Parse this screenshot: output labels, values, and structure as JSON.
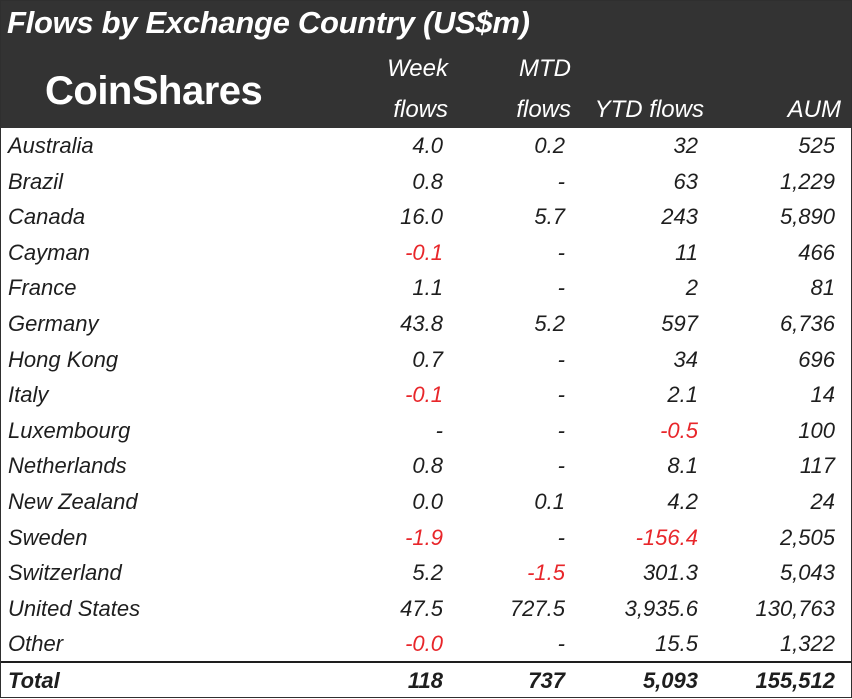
{
  "header": {
    "title": "Flows by Exchange Country (US$m)",
    "logo": "CoinShares",
    "columns": [
      {
        "line1": "Week",
        "line2": "flows"
      },
      {
        "line1": "MTD",
        "line2": "flows"
      },
      {
        "line1": "",
        "line2": "YTD flows"
      },
      {
        "line1": "",
        "line2": "AUM"
      }
    ]
  },
  "rows": [
    {
      "country": "Australia",
      "week": "4.0",
      "mtd": "0.2",
      "ytd": "32",
      "aum": "525"
    },
    {
      "country": "Brazil",
      "week": "0.8",
      "mtd": "-",
      "ytd": "63",
      "aum": "1,229"
    },
    {
      "country": "Canada",
      "week": "16.0",
      "mtd": "5.7",
      "ytd": "243",
      "aum": "5,890"
    },
    {
      "country": "Cayman",
      "week": "-0.1",
      "mtd": "-",
      "ytd": "11",
      "aum": "466"
    },
    {
      "country": "France",
      "week": "1.1",
      "mtd": "-",
      "ytd": "2",
      "aum": "81"
    },
    {
      "country": "Germany",
      "week": "43.8",
      "mtd": "5.2",
      "ytd": "597",
      "aum": "6,736"
    },
    {
      "country": "Hong Kong",
      "week": "0.7",
      "mtd": "-",
      "ytd": "34",
      "aum": "696"
    },
    {
      "country": "Italy",
      "week": "-0.1",
      "mtd": "-",
      "ytd": "2.1",
      "aum": "14"
    },
    {
      "country": "Luxembourg",
      "week": "-",
      "mtd": "-",
      "ytd": "-0.5",
      "aum": "100"
    },
    {
      "country": "Netherlands",
      "week": "0.8",
      "mtd": "-",
      "ytd": "8.1",
      "aum": "117"
    },
    {
      "country": "New Zealand",
      "week": "0.0",
      "mtd": "0.1",
      "ytd": "4.2",
      "aum": "24"
    },
    {
      "country": "Sweden",
      "week": "-1.9",
      "mtd": "-",
      "ytd": "-156.4",
      "aum": "2,505"
    },
    {
      "country": "Switzerland",
      "week": "5.2",
      "mtd": "-1.5",
      "ytd": "301.3",
      "aum": "5,043"
    },
    {
      "country": "United States",
      "week": "47.5",
      "mtd": "727.5",
      "ytd": "3,935.6",
      "aum": "130,763"
    },
    {
      "country": "Other",
      "week": "-0.0",
      "mtd": "-",
      "ytd": "15.5",
      "aum": "1,322"
    }
  ],
  "total": {
    "label": "Total",
    "week": "118",
    "mtd": "737",
    "ytd": "5,093",
    "aum": "155,512"
  },
  "colors": {
    "header_bg": "#333333",
    "negative": "#e8262a",
    "text": "#1e1e1e"
  }
}
